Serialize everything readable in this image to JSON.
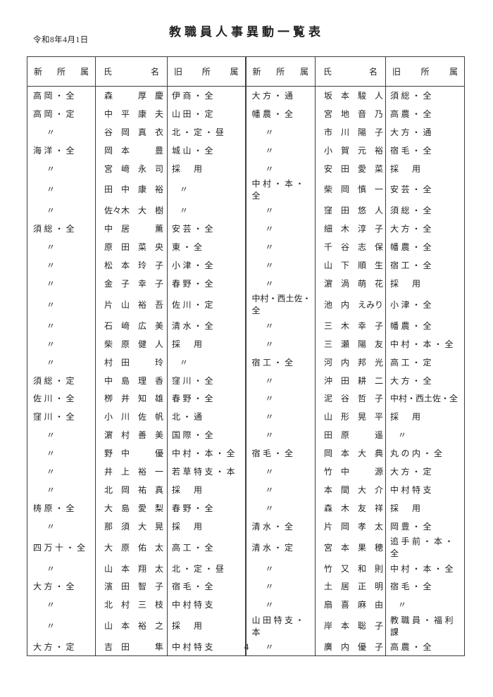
{
  "document": {
    "date": "令和8年4月1日",
    "title": "教職員人事異動一覧表",
    "page_number": "4"
  },
  "table": {
    "headers": {
      "shin": "新所属",
      "name": "氏名",
      "kyu": "旧所属"
    },
    "ditto_mark": "〃",
    "left_rows": [
      {
        "shin": "高岡・全",
        "name": "森　　　厚　慶",
        "kyu": "伊商・全"
      },
      {
        "shin": "高岡・定",
        "name": "中　平　康　夫",
        "kyu": "山田・定"
      },
      {
        "shin": "〃",
        "name": "谷　岡　真　衣",
        "kyu": "北・定・昼"
      },
      {
        "shin": "海洋・全",
        "name": "岡　本　　　豊",
        "kyu": "城山・全"
      },
      {
        "shin": "〃",
        "name": "宮　﨑　永　司",
        "kyu": "採　用"
      },
      {
        "shin": "〃",
        "name": "田　中　康　裕",
        "kyu": "〃"
      },
      {
        "shin": "〃",
        "name": "佐々木　大　樹",
        "kyu": "〃"
      },
      {
        "shin": "須総・全",
        "name": "中　居　　　薫",
        "kyu": "安芸・全"
      },
      {
        "shin": "〃",
        "name": "原　田　菜　央",
        "kyu": "東・全"
      },
      {
        "shin": "〃",
        "name": "松　本　玲　子",
        "kyu": "小津・全"
      },
      {
        "shin": "〃",
        "name": "金　子　幸　子",
        "kyu": "春野・全"
      },
      {
        "shin": "〃",
        "name": "片　山　裕　吾",
        "kyu": "佐川・定"
      },
      {
        "shin": "〃",
        "name": "石　﨑　広　美",
        "kyu": "清水・全"
      },
      {
        "shin": "〃",
        "name": "柴　原　健　人",
        "kyu": "採　用"
      },
      {
        "shin": "〃",
        "name": "村　田　　　玲",
        "kyu": "〃"
      },
      {
        "shin": "須総・定",
        "name": "中　島　理　香",
        "kyu": "窪川・全"
      },
      {
        "shin": "佐川・全",
        "name": "栁　井　知　雄",
        "kyu": "春野・全"
      },
      {
        "shin": "窪川・全",
        "name": "小　川　佐　帆",
        "kyu": "北・通"
      },
      {
        "shin": "〃",
        "name": "濵　村　善　美",
        "kyu": "国際・全"
      },
      {
        "shin": "〃",
        "name": "野　中　　　優",
        "kyu": "中村・本・全"
      },
      {
        "shin": "〃",
        "name": "井　上　裕　一",
        "kyu": "若草特支・本"
      },
      {
        "shin": "〃",
        "name": "北　岡　祐　真",
        "kyu": "採　用"
      },
      {
        "shin": "梼原・全",
        "name": "大　島　愛　梨",
        "kyu": "春野・全"
      },
      {
        "shin": "〃",
        "name": "那　須　大　晃",
        "kyu": "採　用"
      },
      {
        "shin": "四万十・全",
        "name": "大　原　佑　太",
        "kyu": "高工・全"
      },
      {
        "shin": "〃",
        "name": "山　本　翔　太",
        "kyu": "北・定・昼"
      },
      {
        "shin": "大方・全",
        "name": "濱　田　智　子",
        "kyu": "宿毛・全"
      },
      {
        "shin": "〃",
        "name": "北　村　三　枝",
        "kyu": "中村特支"
      },
      {
        "shin": "〃",
        "name": "山　本　裕　之",
        "kyu": "採　用"
      },
      {
        "shin": "大方・定",
        "name": "吉　田　　　隼",
        "kyu": "中村特支"
      }
    ],
    "right_rows": [
      {
        "shin": "大方・通",
        "name": "坂　本　駿　人",
        "kyu": "須総・全"
      },
      {
        "shin": "幡農・全",
        "name": "宮　地　音　乃",
        "kyu": "高農・全"
      },
      {
        "shin": "〃",
        "name": "市　川　陽　子",
        "kyu": "大方・通"
      },
      {
        "shin": "〃",
        "name": "小　賀　元　裕",
        "kyu": "宿毛・全"
      },
      {
        "shin": "〃",
        "name": "安　田　愛　菜",
        "kyu": "採　用"
      },
      {
        "shin": "中村・本・全",
        "name": "柴　岡　慎　一",
        "kyu": "安芸・全"
      },
      {
        "shin": "〃",
        "name": "窪　田　悠　人",
        "kyu": "須総・全"
      },
      {
        "shin": "〃",
        "name": "細　木　淳　子",
        "kyu": "大方・全"
      },
      {
        "shin": "〃",
        "name": "千　谷　志　保",
        "kyu": "幡農・全"
      },
      {
        "shin": "〃",
        "name": "山　下　順　生",
        "kyu": "宿工・全"
      },
      {
        "shin": "〃",
        "name": "濵　渦　萌　花",
        "kyu": "採　用"
      },
      {
        "shin": "中村・西土佐・全",
        "name": "池　内　えみり",
        "kyu": "小津・全"
      },
      {
        "shin": "〃",
        "name": "三　木　幸　子",
        "kyu": "幡農・全"
      },
      {
        "shin": "〃",
        "name": "三　瀬　陽　友",
        "kyu": "中村・本・全"
      },
      {
        "shin": "宿工・全",
        "name": "河　内　邦　光",
        "kyu": "高工・定"
      },
      {
        "shin": "〃",
        "name": "沖　田　耕　二",
        "kyu": "大方・全"
      },
      {
        "shin": "〃",
        "name": "泥　谷　哲　子",
        "kyu": "中村・西土佐・全"
      },
      {
        "shin": "〃",
        "name": "山　形　晃　平",
        "kyu": "採　用"
      },
      {
        "shin": "〃",
        "name": "田　原　　　遥",
        "kyu": "〃"
      },
      {
        "shin": "宿毛・全",
        "name": "岡　本　大　典",
        "kyu": "丸の内・全"
      },
      {
        "shin": "〃",
        "name": "竹　中　　　源",
        "kyu": "大方・定"
      },
      {
        "shin": "〃",
        "name": "本　間　大　介",
        "kyu": "中村特支"
      },
      {
        "shin": "〃",
        "name": "森　木　友　祥",
        "kyu": "採　用"
      },
      {
        "shin": "清水・全",
        "name": "片　岡　孝　太",
        "kyu": "岡豊・全"
      },
      {
        "shin": "清水・定",
        "name": "宮　本　果　穂",
        "kyu": "追手前・本・全"
      },
      {
        "shin": "〃",
        "name": "竹　又　和　則",
        "kyu": "中村・本・全"
      },
      {
        "shin": "〃",
        "name": "土　居　正　明",
        "kyu": "宿毛・全"
      },
      {
        "shin": "〃",
        "name": "扇　喜　麻　由",
        "kyu": "〃"
      },
      {
        "shin": "山田特支・本",
        "name": "岸　本　聡　子",
        "kyu": "教職員・福利課"
      },
      {
        "shin": "〃",
        "name": "廣　内　優　子",
        "kyu": "高農・全"
      }
    ]
  }
}
